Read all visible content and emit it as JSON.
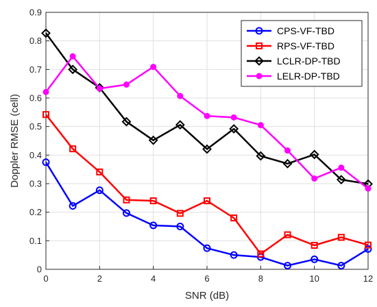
{
  "chart_data": {
    "type": "line",
    "xlabel": "SNR (dB)",
    "ylabel": "Doppler RMSE (cell)",
    "xlim": [
      0,
      12
    ],
    "ylim": [
      0,
      0.9
    ],
    "xticks": [
      "0",
      "2",
      "4",
      "6",
      "8",
      "10",
      "12"
    ],
    "yticks": [
      "0",
      "0.1",
      "0.2",
      "0.3",
      "0.4",
      "0.5",
      "0.6",
      "0.7",
      "0.8",
      "0.9"
    ],
    "x": [
      0,
      1,
      2,
      3,
      4,
      5,
      6,
      7,
      8,
      9,
      10,
      11,
      12
    ],
    "grid": true,
    "legend_position": "top-right",
    "series": [
      {
        "name": "CPS-VF-TBD",
        "color": "#0000ff",
        "marker": "circle",
        "values": [
          0.375,
          0.222,
          0.277,
          0.197,
          0.154,
          0.15,
          0.074,
          0.05,
          0.043,
          0.013,
          0.035,
          0.013,
          0.071
        ]
      },
      {
        "name": "RPS-VF-TBD",
        "color": "#ff0000",
        "marker": "square",
        "values": [
          0.542,
          0.422,
          0.341,
          0.243,
          0.24,
          0.196,
          0.24,
          0.18,
          0.054,
          0.121,
          0.084,
          0.112,
          0.085
        ]
      },
      {
        "name": "LCLR-DP-TBD",
        "color": "#000000",
        "marker": "diamond",
        "values": [
          0.827,
          0.7,
          0.636,
          0.517,
          0.452,
          0.506,
          0.421,
          0.492,
          0.397,
          0.37,
          0.402,
          0.314,
          0.299
        ]
      },
      {
        "name": "LELR-DP-TBD",
        "color": "#ff00ff",
        "marker": "dot",
        "values": [
          0.621,
          0.746,
          0.633,
          0.647,
          0.709,
          0.607,
          0.537,
          0.532,
          0.505,
          0.416,
          0.318,
          0.356,
          0.283
        ]
      }
    ]
  }
}
